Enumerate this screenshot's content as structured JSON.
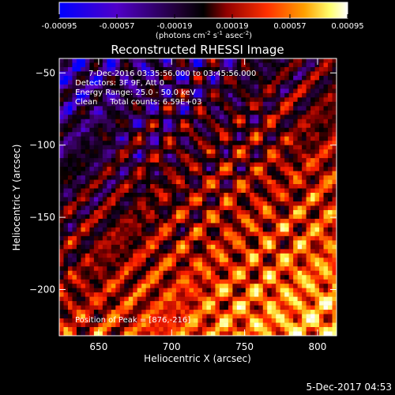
{
  "chart_data": {
    "type": "heatmap",
    "title": "Reconstructed RHESSI Image",
    "annotations": [
      "7-Dec-2016 03:35:56.000 to 03:45:56.000",
      "Detectors: 3F 9F, Att 0",
      "Energy Range: 25.0 - 50.0 keV",
      "Clean     Total counts: 6.59E+03"
    ],
    "peak_label": "Position of Peak = [876,-216]",
    "footer": "5-Dec-2017 04:53",
    "xlabel": "Heliocentric X (arcsec)",
    "ylabel": "Heliocentric Y (arcsec)",
    "xlim": [
      623,
      813
    ],
    "ylim": [
      -232,
      -40
    ],
    "x_ticks": [
      650,
      700,
      750,
      800
    ],
    "y_ticks": [
      -50,
      -100,
      -150,
      -200
    ],
    "x_tick_labels": [
      "650",
      "700",
      "750",
      "800"
    ],
    "y_tick_labels": [
      "−50",
      "−100",
      "−150",
      "−200"
    ],
    "colorbar": {
      "ticks": [
        -0.00095,
        -0.00057,
        -0.00019,
        0.00019,
        0.00057,
        0.00095
      ],
      "tick_labels": [
        "-0.00095",
        "-0.00057",
        "-0.00019",
        "0.00019",
        "0.00057",
        "0.00095"
      ],
      "unit": "(photons cm<sup>-2</sup> s<sup>-1</sup> asec<sup>-2</sup>)",
      "unit_parts": [
        "(photons cm",
        "-2",
        " s",
        "-1",
        " asec",
        "-2",
        ")"
      ],
      "range": [
        -0.00095,
        0.00095
      ]
    },
    "grid": false,
    "colormap": [
      "#0000ff",
      "#5a00c8",
      "#2a0040",
      "#000000",
      "#8a0000",
      "#ff2000",
      "#ffa000",
      "#ffff60",
      "#ffffff"
    ]
  }
}
